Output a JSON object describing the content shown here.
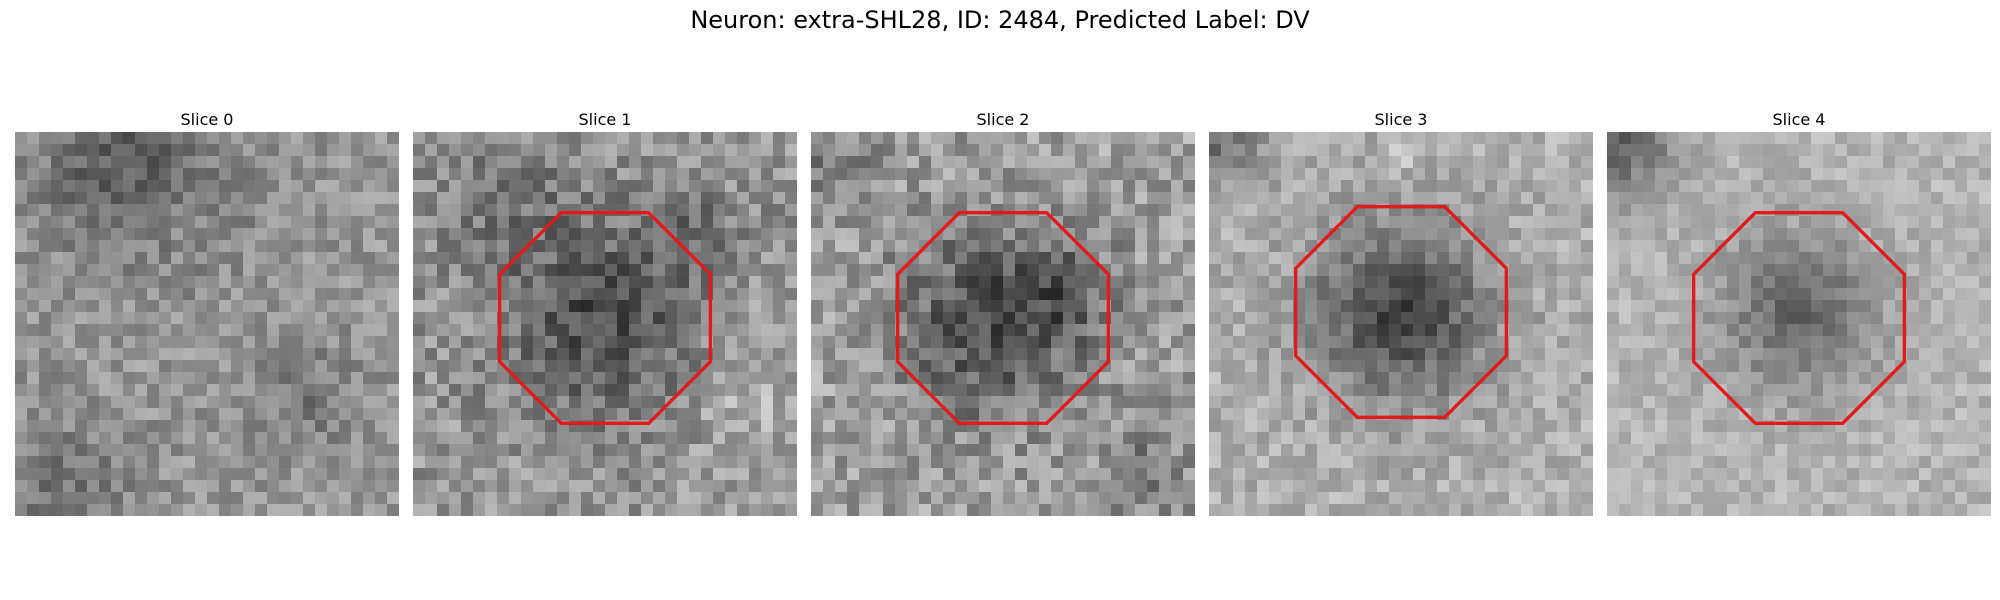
{
  "figure": {
    "title": "Neuron: extra-SHL28, ID: 2484, Predicted Label: DV"
  },
  "overlay_color": "#e31a1c",
  "panels": [
    {
      "title": "Slice 0",
      "has_roi": false
    },
    {
      "title": "Slice 1",
      "has_roi": true
    },
    {
      "title": "Slice 2",
      "has_roi": true
    },
    {
      "title": "Slice 3",
      "has_roi": true
    },
    {
      "title": "Slice 4",
      "has_roi": true
    }
  ]
}
